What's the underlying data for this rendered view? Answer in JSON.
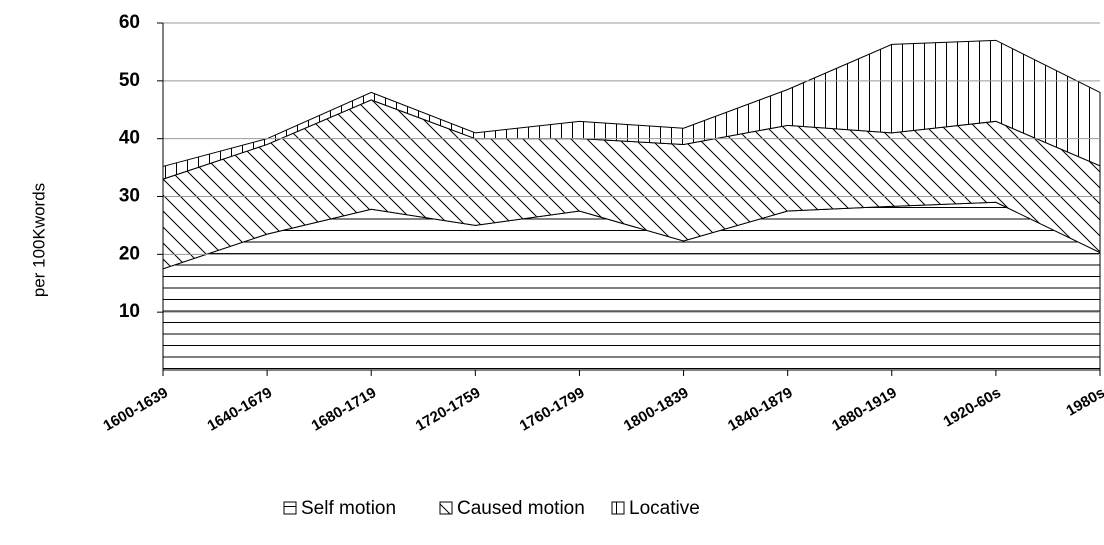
{
  "chart_data": {
    "type": "stacked_area",
    "y_label": "per 100Kwords",
    "categories": [
      "1600-1639",
      "1640-1679",
      "1680-1719",
      "1720-1759",
      "1760-1799",
      "1800-1839",
      "1840-1879",
      "1880-1919",
      "1920-60s",
      "1980s"
    ],
    "series": [
      {
        "name": "Self motion",
        "color": "#000000",
        "hatch": "horizontal",
        "values": [
          17.5,
          23.5,
          27.8,
          25,
          27.5,
          22.3,
          27.5,
          28.3,
          29,
          20.3
        ]
      },
      {
        "name": "Caused motion",
        "color": "#000000",
        "hatch": "diagonal",
        "values": [
          15.5,
          15.5,
          18.9,
          15,
          12.5,
          16.7,
          14.8,
          12.7,
          14,
          15
        ]
      },
      {
        "name": "Locative",
        "color": "#000000",
        "hatch": "vertical",
        "values": [
          2.2,
          1,
          1.3,
          1,
          3,
          2.8,
          6.2,
          15.3,
          14,
          12.7
        ]
      }
    ],
    "ylim": [
      0,
      60
    ],
    "yticks": [
      10,
      20,
      30,
      40,
      50,
      60
    ],
    "grid": true,
    "legend": "bottom"
  }
}
